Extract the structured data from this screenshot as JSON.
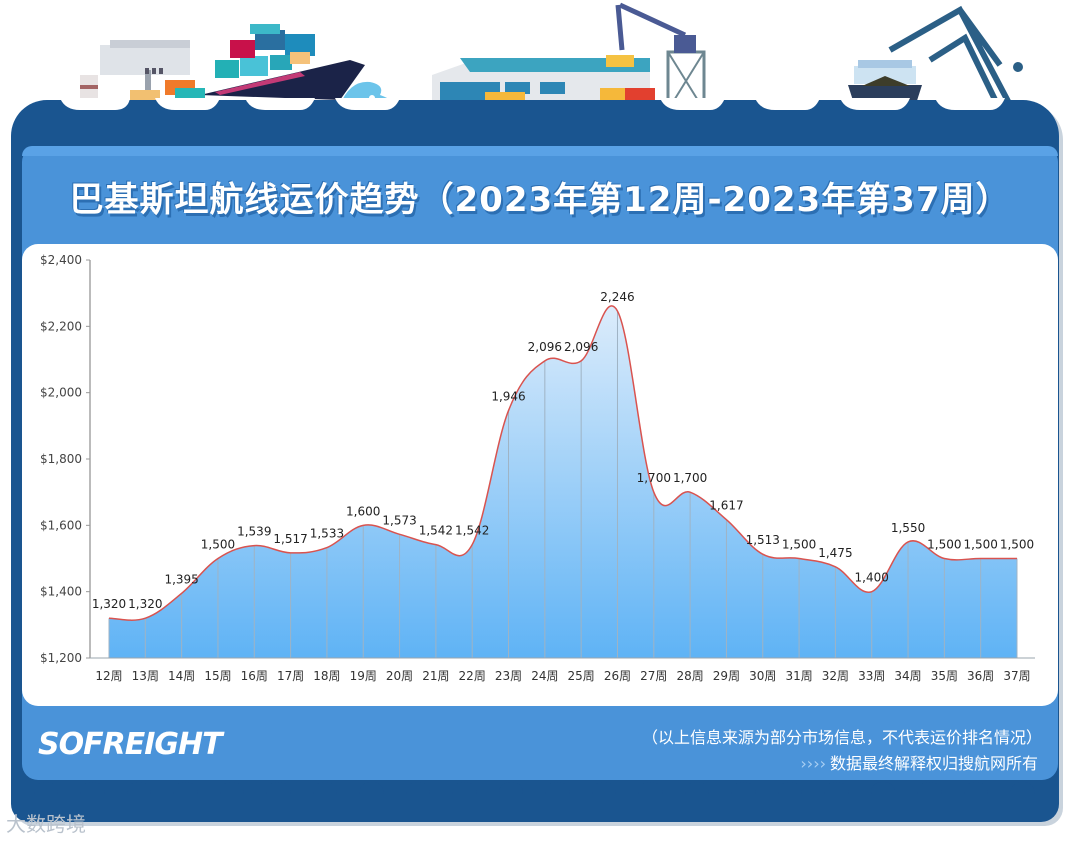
{
  "header": {
    "title": "巴基斯坦航线运价趋势（2023年第12周-2023年第37周）"
  },
  "footer": {
    "logo_text": "SOFREIGHT",
    "disclaimer": "（以上信息来源为部分市场信息，不代表运价排名情况）",
    "arrows": "››››",
    "rights": "数据最终解释权归搜航网所有",
    "watermark": "大数跨境"
  },
  "colors": {
    "frame": "#1a5590",
    "panel": "#4a93d9",
    "line": "#d9534f",
    "area_top": "#dcecfb",
    "area_bottom": "#5fb3f5"
  },
  "chart_data": {
    "type": "area",
    "title": "巴基斯坦航线运价趋势（2023年第12周-2023年第37周）",
    "xlabel": "",
    "ylabel": "",
    "categories": [
      "12周",
      "13周",
      "14周",
      "15周",
      "16周",
      "17周",
      "18周",
      "19周",
      "20周",
      "21周",
      "22周",
      "23周",
      "24周",
      "25周",
      "26周",
      "27周",
      "28周",
      "29周",
      "30周",
      "31周",
      "32周",
      "33周",
      "34周",
      "35周",
      "36周",
      "37周"
    ],
    "series": [
      {
        "name": "运价",
        "values": [
          1320,
          1320,
          1395,
          1500,
          1539,
          1517,
          1533,
          1600,
          1573,
          1542,
          1542,
          1946,
          2096,
          2096,
          2246,
          1700,
          1700,
          1617,
          1513,
          1500,
          1475,
          1400,
          1550,
          1500,
          1500,
          1500
        ]
      }
    ],
    "data_labels": [
      "1,320",
      "1,320",
      "1,395",
      "1,500",
      "1,539",
      "1,517",
      "1,533",
      "1,600",
      "1,573",
      "1,542",
      "1,542",
      "1,946",
      "2,096",
      "2,096",
      "2,246",
      "1,700",
      "1,700",
      "1,617",
      "1,513",
      "1,500",
      "1,475",
      "1,400",
      "1,550",
      "1,500",
      "1,500",
      "1,500"
    ],
    "y_ticks": [
      1200,
      1400,
      1600,
      1800,
      2000,
      2200,
      2400
    ],
    "y_tick_labels": [
      "$1,200",
      "$1,400",
      "$1,600",
      "$1,800",
      "$2,000",
      "$2,200",
      "$2,400"
    ],
    "ylim": [
      1200,
      2400
    ],
    "grid": false,
    "legend": "none"
  }
}
